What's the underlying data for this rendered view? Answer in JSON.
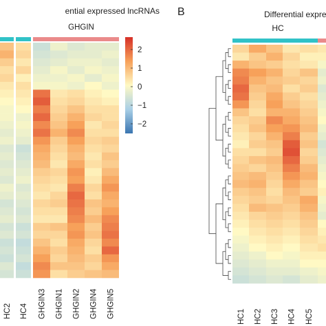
{
  "panel_a": {
    "title": "ential expressed lncRNAs",
    "group_label": "GHGIN",
    "legend_ticks": [
      "2",
      "1",
      "0",
      "−1",
      "−2"
    ]
  },
  "panel_b": {
    "letter": "B",
    "title": "Differential expre",
    "group_label": "HC"
  },
  "colors": {
    "high": "#d62f27",
    "mid_high": "#f7a15a",
    "neutral": "#fff9c4",
    "mid_low": "#a9cfe6",
    "low": "#3a75b1",
    "hc_bar": "#30c2c7",
    "ghgin_bar": "#ea8a8a"
  },
  "chart_data": [
    {
      "type": "heatmap",
      "title": "ential expressed lncRNAs",
      "columns": [
        "HC2",
        "HC4",
        "GHGIN3",
        "GHGIN1",
        "GHGIN2",
        "GHGIN4",
        "GHGIN5"
      ],
      "column_groups": [
        "HC",
        "HC",
        "GHGIN",
        "GHGIN",
        "GHGIN",
        "GHGIN",
        "GHGIN"
      ],
      "legend_range": [
        -2,
        2
      ],
      "values": [
        [
          0.6,
          0.3,
          -0.6,
          -0.2,
          -0.4,
          -0.3,
          -0.3
        ],
        [
          0.8,
          0.4,
          -0.5,
          -0.4,
          -0.3,
          -0.3,
          -0.2
        ],
        [
          0.5,
          0.2,
          -0.4,
          -0.3,
          -0.2,
          -0.2,
          -0.3
        ],
        [
          0.3,
          0.4,
          -0.3,
          -0.1,
          -0.3,
          -0.1,
          -0.2
        ],
        [
          0.4,
          0.1,
          -0.2,
          -0.2,
          -0.1,
          -0.3,
          -0.1
        ],
        [
          0.2,
          0.3,
          -0.1,
          -0.1,
          -0.2,
          0.0,
          -0.2
        ],
        [
          0.1,
          0.2,
          1.4,
          0.2,
          0.3,
          0.1,
          0.0
        ],
        [
          0.0,
          0.1,
          1.6,
          0.3,
          0.4,
          0.2,
          0.1
        ],
        [
          -0.1,
          0.0,
          1.3,
          0.4,
          0.6,
          0.3,
          0.3
        ],
        [
          -0.1,
          -0.2,
          1.5,
          0.5,
          0.8,
          0.4,
          0.3
        ],
        [
          -0.2,
          -0.1,
          1.2,
          0.6,
          1.0,
          0.2,
          0.4
        ],
        [
          -0.3,
          -0.2,
          1.4,
          0.8,
          1.2,
          0.3,
          0.3
        ],
        [
          -0.2,
          -0.3,
          1.1,
          0.5,
          1.0,
          0.4,
          0.5
        ],
        [
          -0.4,
          -0.6,
          0.9,
          0.4,
          0.8,
          0.3,
          0.4
        ],
        [
          -0.3,
          -0.5,
          0.8,
          0.3,
          0.7,
          0.2,
          0.6
        ],
        [
          -0.4,
          -0.4,
          0.7,
          0.2,
          0.9,
          0.3,
          0.5
        ],
        [
          -0.3,
          -0.3,
          0.5,
          0.4,
          1.1,
          0.1,
          0.7
        ],
        [
          -0.4,
          -0.2,
          0.4,
          0.3,
          1.0,
          0.2,
          0.9
        ],
        [
          -0.2,
          -0.4,
          0.3,
          0.2,
          1.3,
          0.4,
          1.1
        ],
        [
          -0.3,
          -0.3,
          0.2,
          0.4,
          1.5,
          0.3,
          0.9
        ],
        [
          -0.5,
          -0.4,
          0.4,
          0.5,
          1.4,
          0.6,
          0.8
        ],
        [
          -0.4,
          -0.5,
          0.3,
          0.3,
          1.3,
          0.5,
          1.0
        ],
        [
          -0.3,
          -0.4,
          0.2,
          0.2,
          1.2,
          0.7,
          1.2
        ],
        [
          -0.5,
          -0.6,
          0.5,
          0.6,
          1.0,
          0.5,
          1.3
        ],
        [
          -0.4,
          -0.5,
          0.4,
          0.4,
          1.1,
          0.6,
          1.4
        ],
        [
          -0.6,
          -0.7,
          0.6,
          0.3,
          0.9,
          0.4,
          1.2
        ],
        [
          -0.5,
          -0.6,
          0.8,
          0.5,
          0.8,
          0.3,
          1.5
        ],
        [
          -0.6,
          -0.5,
          1.0,
          0.4,
          0.7,
          0.5,
          1.1
        ],
        [
          -0.4,
          -0.7,
          1.2,
          0.6,
          0.6,
          0.4,
          0.9
        ],
        [
          -0.5,
          -0.6,
          1.1,
          0.3,
          0.5,
          0.6,
          0.7
        ]
      ]
    },
    {
      "type": "heatmap",
      "title": "Differential expre",
      "columns": [
        "HC1",
        "HC2",
        "HC3",
        "HC4",
        "HC5"
      ],
      "column_groups": [
        "HC",
        "HC",
        "HC",
        "HC",
        "HC"
      ],
      "legend_range": [
        -2,
        2
      ],
      "values": [
        [
          0.4,
          0.9,
          0.6,
          0.2,
          0.3
        ],
        [
          0.2,
          0.5,
          0.8,
          0.4,
          0.1
        ],
        [
          0.8,
          0.6,
          0.5,
          0.3,
          0.2
        ],
        [
          1.2,
          1.0,
          0.8,
          0.4,
          0.6
        ],
        [
          1.3,
          0.8,
          0.6,
          0.5,
          0.4
        ],
        [
          1.5,
          0.6,
          0.7,
          0.3,
          0.5
        ],
        [
          1.4,
          0.5,
          0.9,
          0.5,
          0.3
        ],
        [
          1.1,
          0.4,
          1.0,
          0.6,
          0.4
        ],
        [
          0.6,
          0.3,
          0.8,
          0.8,
          0.5
        ],
        [
          0.4,
          0.5,
          1.2,
          0.9,
          0.6
        ],
        [
          0.3,
          0.6,
          1.0,
          1.1,
          0.7
        ],
        [
          0.2,
          0.4,
          0.8,
          1.3,
          0.5
        ],
        [
          0.1,
          0.5,
          0.6,
          1.6,
          0.6
        ],
        [
          0.3,
          0.3,
          0.5,
          1.7,
          0.4
        ],
        [
          0.4,
          0.6,
          0.7,
          1.5,
          0.5
        ],
        [
          0.5,
          0.4,
          0.6,
          1.3,
          0.7
        ],
        [
          0.6,
          0.7,
          0.5,
          1.1,
          0.8
        ],
        [
          0.7,
          0.8,
          0.4,
          0.9,
          0.6
        ],
        [
          0.5,
          0.6,
          0.3,
          0.7,
          0.5
        ],
        [
          0.4,
          0.5,
          0.4,
          0.6,
          0.9
        ],
        [
          0.3,
          0.7,
          0.6,
          0.5,
          0.8
        ],
        [
          0.2,
          0.4,
          0.5,
          0.4,
          0.6
        ],
        [
          0.1,
          0.3,
          0.4,
          0.3,
          0.5
        ],
        [
          0.0,
          0.2,
          0.3,
          0.2,
          0.4
        ],
        [
          -0.1,
          0.1,
          0.2,
          0.1,
          0.3
        ],
        [
          -0.2,
          0.0,
          0.1,
          0.0,
          0.2
        ],
        [
          -0.3,
          -0.2,
          0.0,
          -0.1,
          0.1
        ],
        [
          -0.4,
          -0.3,
          -0.2,
          -0.2,
          0.0
        ],
        [
          -0.5,
          -0.4,
          -0.3,
          -0.3,
          -0.2
        ],
        [
          -0.6,
          -0.5,
          -0.4,
          -0.5,
          -0.3
        ]
      ]
    }
  ]
}
